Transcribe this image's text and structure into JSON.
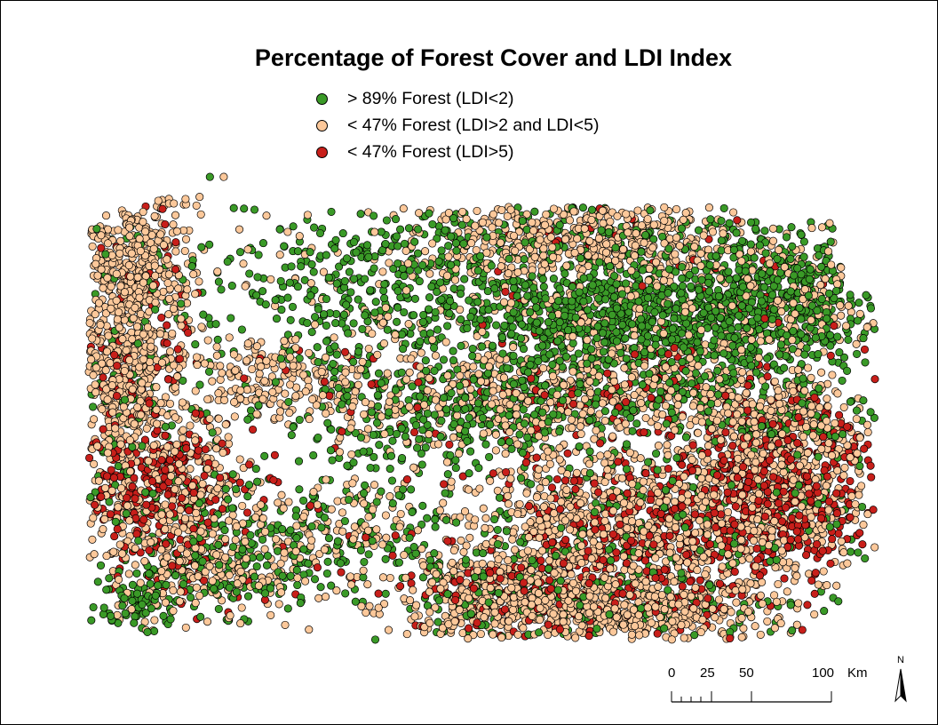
{
  "map": {
    "title": "Percentage of Forest Cover and LDI Index",
    "legend": [
      {
        "key": "forest",
        "label": "> 89% Forest (LDI<2)",
        "color": "#3a9a27"
      },
      {
        "key": "mixed",
        "label": "< 47% Forest (LDI>2 and LDI<5)",
        "color": "#fcc89a"
      },
      {
        "key": "developed",
        "label": "< 47% Forest (LDI>5)",
        "color": "#c81f1a"
      }
    ],
    "point_outline_color": "#000000",
    "scalebar": {
      "ticks": [
        "0",
        "25",
        "50",
        "100"
      ],
      "unit": "Km"
    },
    "north_label": "N"
  }
}
